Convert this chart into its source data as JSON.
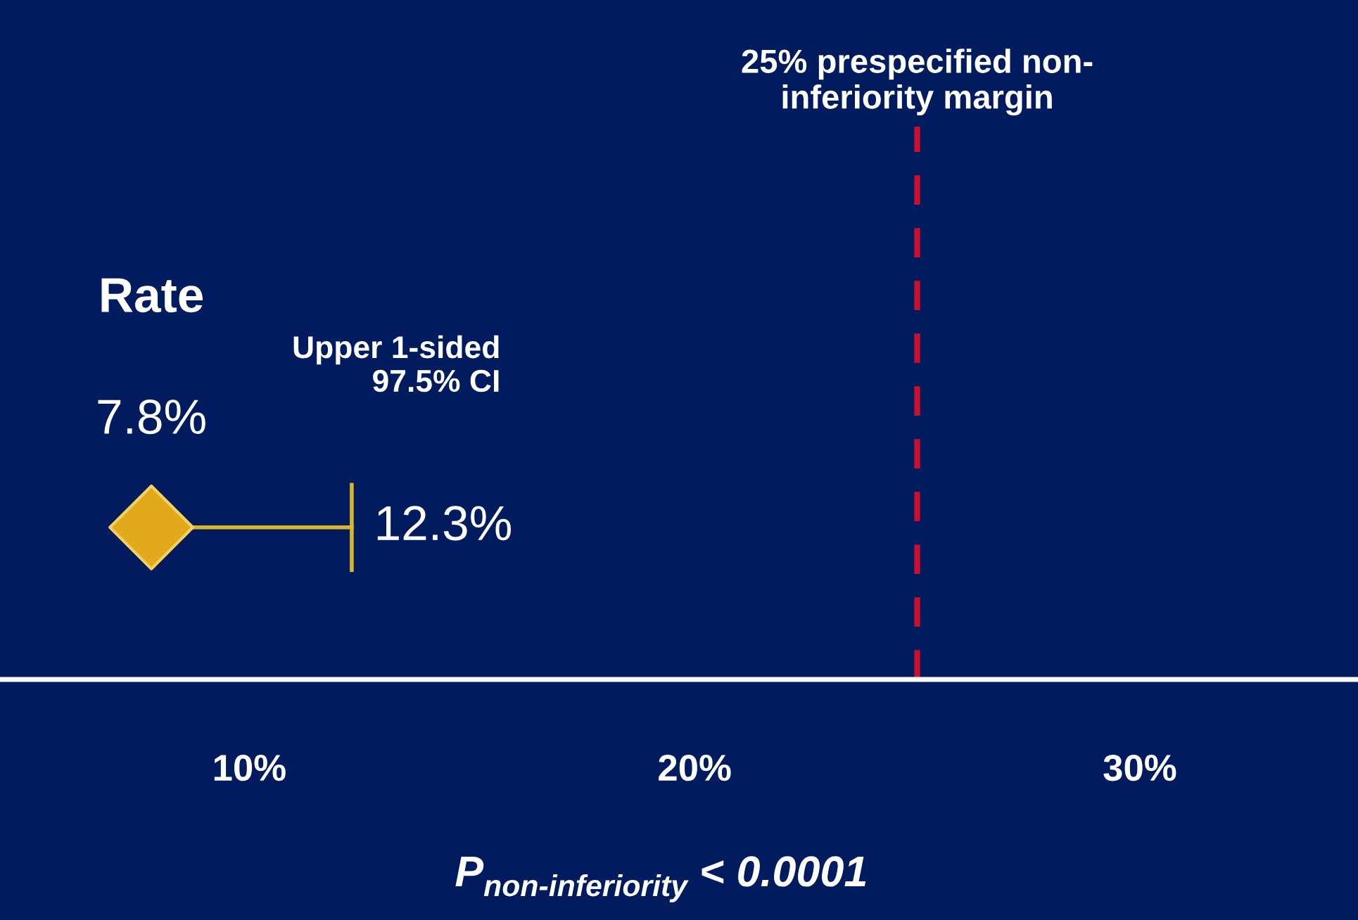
{
  "chart_data": {
    "type": "scatter",
    "orientation": "horizontal",
    "categories": [
      null
    ],
    "values": [
      7.8
    ],
    "color": "#e3a91c",
    "marker": "diamond",
    "errors": [
      [
        7.8,
        12.3
      ]
    ],
    "value_labels": [
      "7.8%"
    ],
    "xlim": [
      4.4,
      34.9
    ],
    "xticks": [
      {
        "value": 10,
        "label": "10%"
      },
      {
        "value": 20,
        "label": "20%"
      },
      {
        "value": 30,
        "label": "30%"
      }
    ],
    "ref_lines": [
      {
        "axis": "x",
        "value": 25,
        "label": "25% prespecified non-\ninferiority margin",
        "color": "#c8102e",
        "line_style": "dashed"
      }
    ],
    "annotations": [
      "Rate",
      "Upper 1-sided\n97.5% CI",
      "12.3%",
      "P$_{non-inferiority}$ < 0.0001"
    ],
    "grid": false
  }
}
